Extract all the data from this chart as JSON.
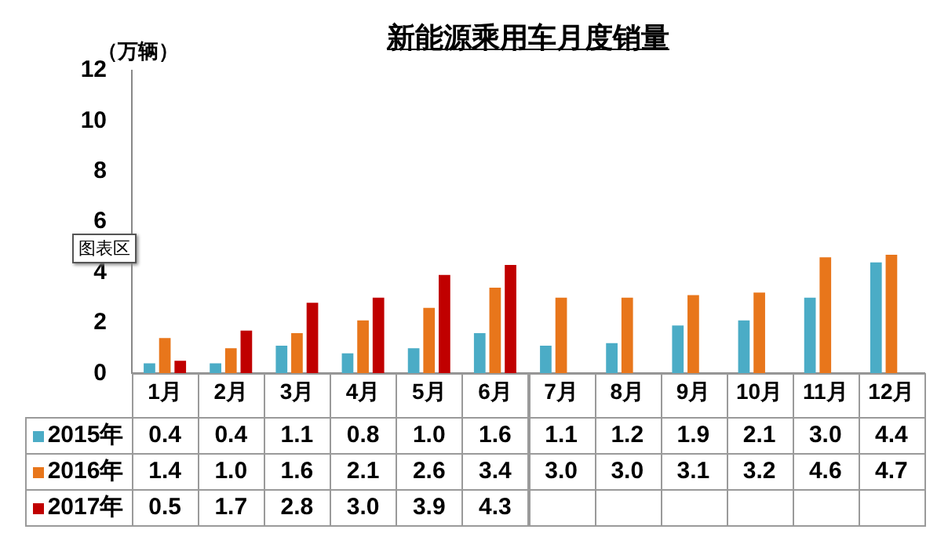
{
  "chart_data": {
    "type": "bar",
    "title": "新能源乘用车月度销量",
    "ylabel": "（万辆）",
    "categories": [
      "1月",
      "2月",
      "3月",
      "4月",
      "5月",
      "6月",
      "7月",
      "8月",
      "9月",
      "10月",
      "11月",
      "12月"
    ],
    "series": [
      {
        "name": "2015年",
        "color": "#4bacc6",
        "values": [
          0.4,
          0.4,
          1.1,
          0.8,
          1.0,
          1.6,
          1.1,
          1.2,
          1.9,
          2.1,
          3.0,
          4.4
        ],
        "value_labels": [
          "0.4",
          "0.4",
          "1.1",
          "0.8",
          "1.0",
          "1.6",
          "1.1",
          "1.2",
          "1.9",
          "2.1",
          "3.0",
          "4.4"
        ]
      },
      {
        "name": "2016年",
        "color": "#e8761b",
        "values": [
          1.4,
          1.0,
          1.6,
          2.1,
          2.6,
          3.4,
          3.0,
          3.0,
          3.1,
          3.2,
          4.6,
          4.7
        ],
        "value_labels": [
          "1.4",
          "1.0",
          "1.6",
          "2.1",
          "2.6",
          "3.4",
          "3.0",
          "3.0",
          "3.1",
          "3.2",
          "4.6",
          "4.7"
        ]
      },
      {
        "name": "2017年",
        "color": "#c00000",
        "values": [
          0.5,
          1.7,
          2.8,
          3.0,
          3.9,
          4.3,
          null,
          null,
          null,
          null,
          null,
          null
        ],
        "value_labels": [
          "0.5",
          "1.7",
          "2.8",
          "3.0",
          "3.9",
          "4.3",
          null,
          null,
          null,
          null,
          null,
          null
        ]
      }
    ],
    "ylim": [
      0,
      12
    ],
    "yticks": [
      0,
      2,
      4,
      6,
      8,
      10,
      12
    ],
    "legend": "bottom",
    "annotations": [
      "图表区"
    ]
  }
}
